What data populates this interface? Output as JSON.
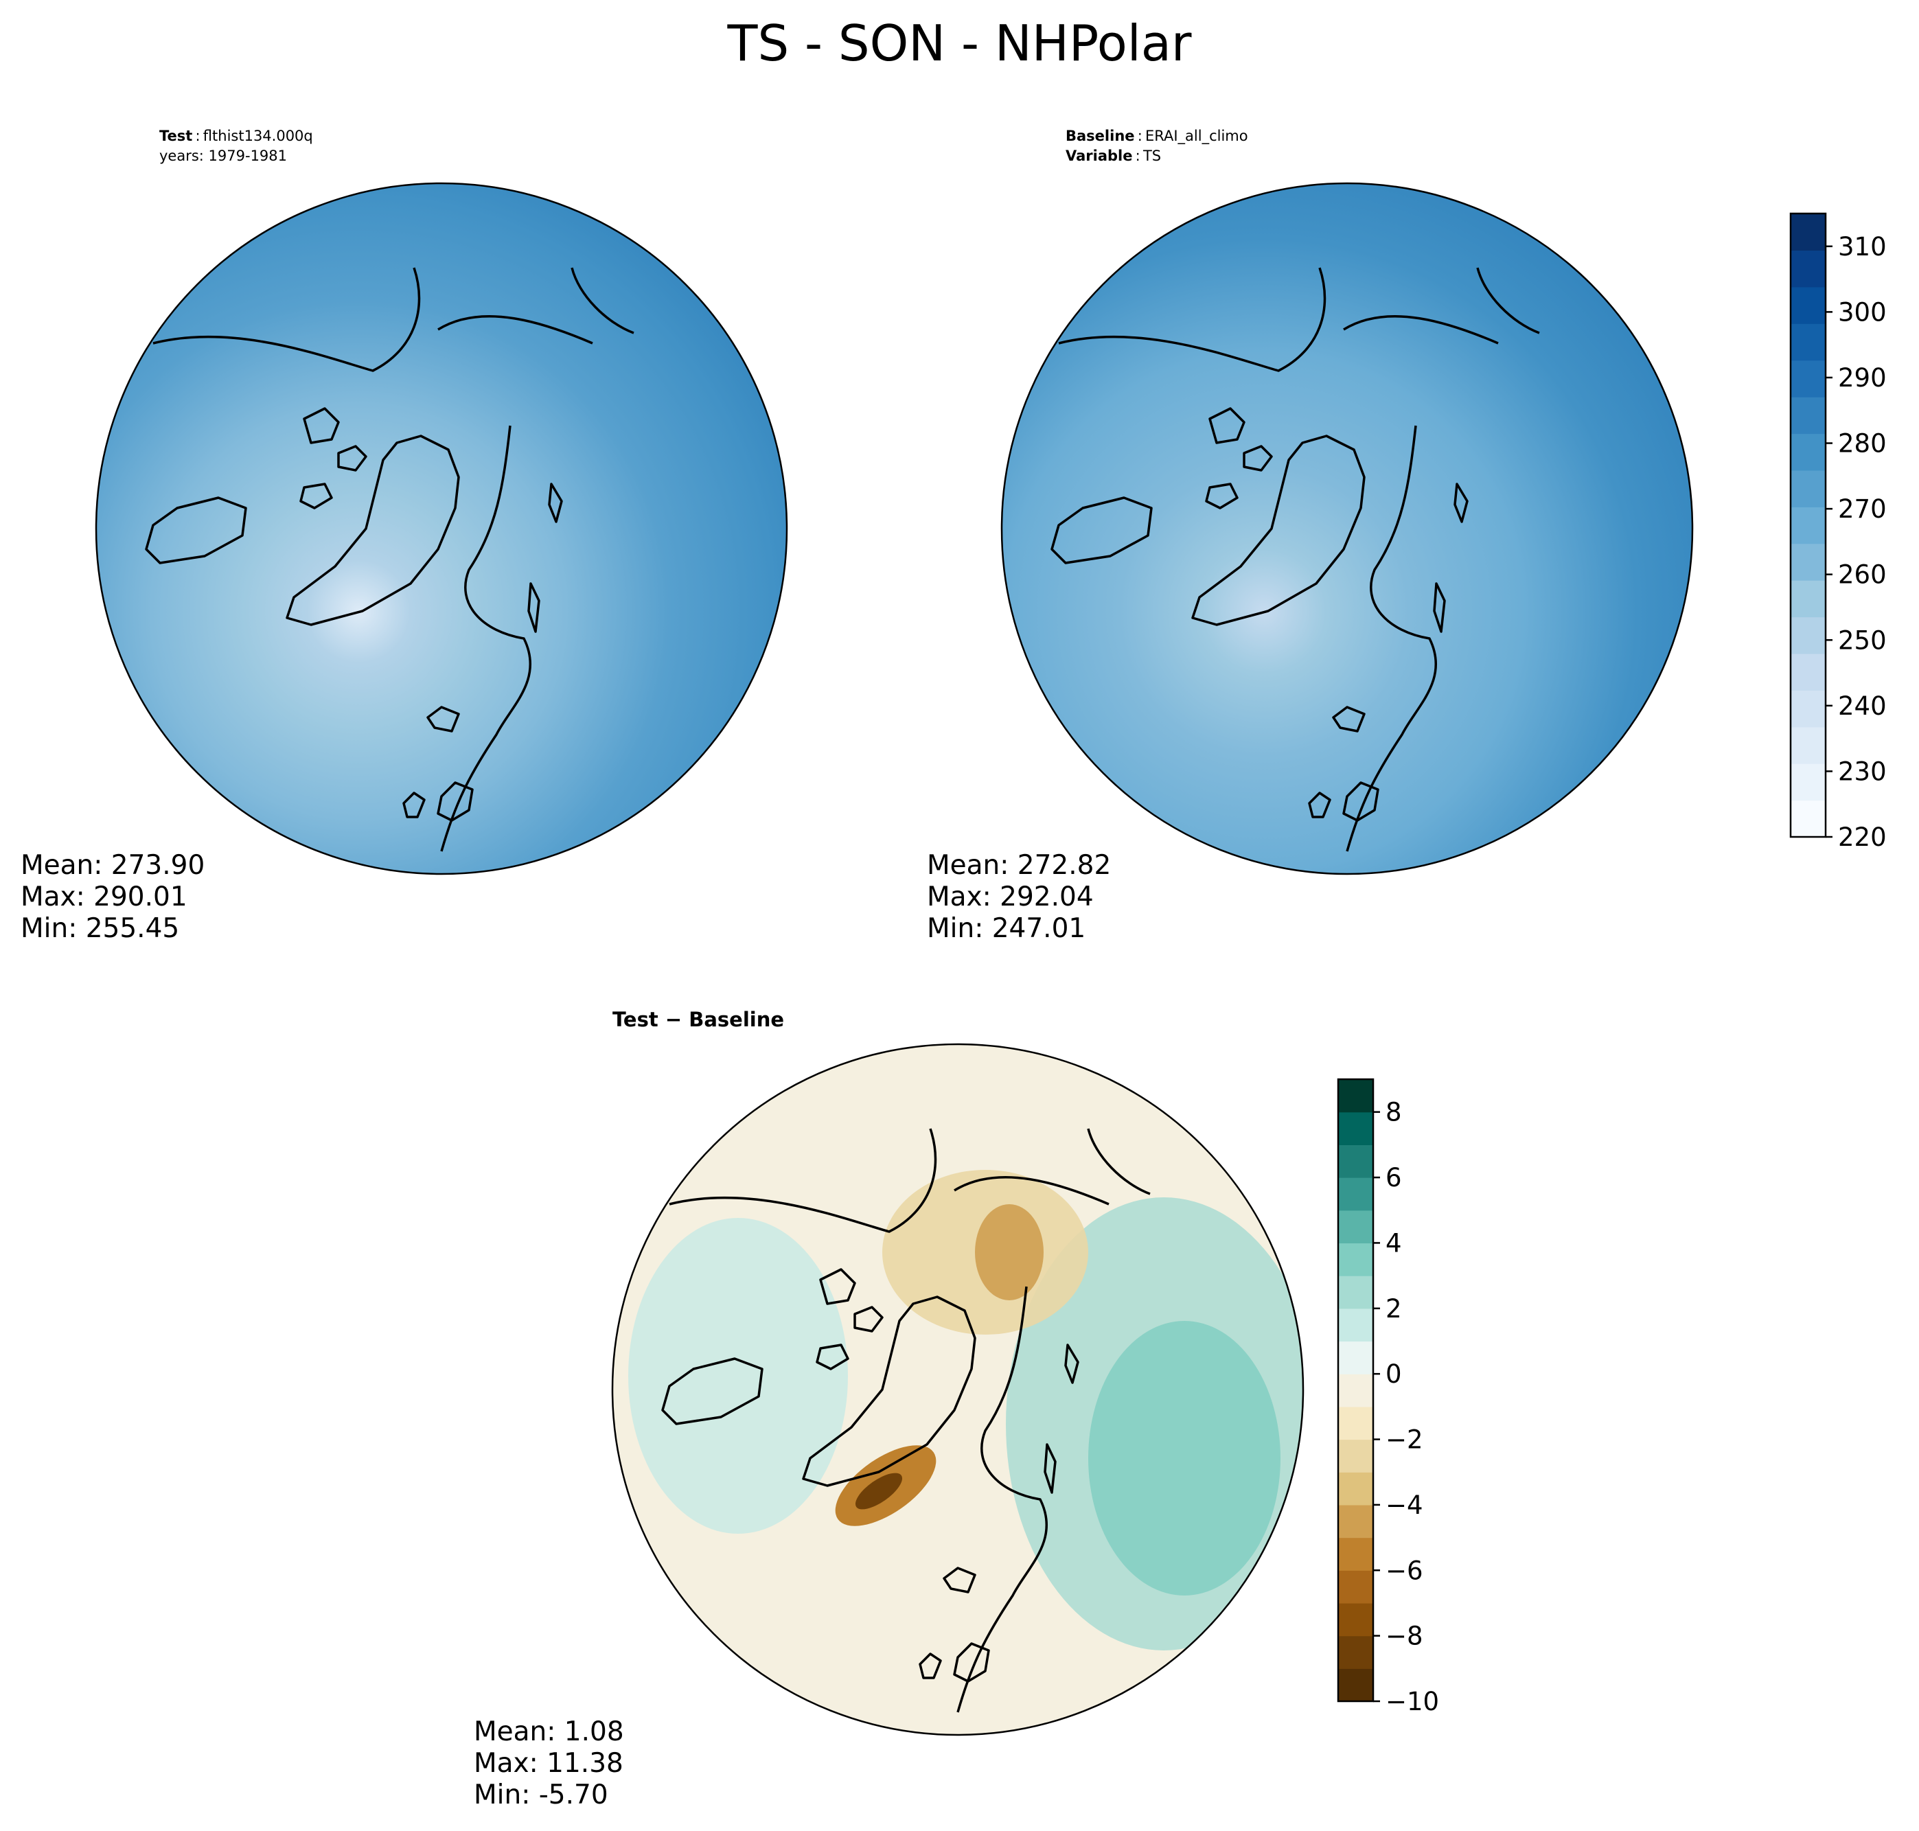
{
  "chart_data": {
    "title": "TS - SON - NHPolar",
    "panels": [
      {
        "type": "heatmap",
        "projection": "north-polar-stereographic",
        "label_key": "Test",
        "label_value": "flthist134.000q",
        "label2": "years: 1979-1981",
        "stats": {
          "mean": "Mean: 273.90",
          "max": "Max: 290.01",
          "min": "Min: 255.45"
        }
      },
      {
        "type": "heatmap",
        "projection": "north-polar-stereographic",
        "label_key": "Baseline",
        "label_value": "ERAI_all_climo",
        "label2_key": "Variable",
        "label2_value": "TS",
        "stats": {
          "mean": "Mean: 272.82",
          "max": "Max: 292.04",
          "min": "Min: 247.01"
        }
      },
      {
        "type": "heatmap",
        "projection": "north-polar-stereographic",
        "title": "Test − Baseline",
        "stats": {
          "mean": "Mean:  1.08",
          "max": "Max: 11.38",
          "min": "Min: -5.70"
        }
      }
    ],
    "colorbars": [
      {
        "name": "absolute",
        "range": [
          220,
          315
        ],
        "tick_labels": [
          "220",
          "230",
          "240",
          "250",
          "260",
          "270",
          "280",
          "290",
          "300",
          "310"
        ],
        "tick_values": [
          220,
          230,
          240,
          250,
          260,
          270,
          280,
          290,
          300,
          310
        ],
        "colors": [
          "#f7fbff",
          "#eaf3fb",
          "#deebf7",
          "#d2e3f3",
          "#c6dbef",
          "#b2d2e8",
          "#9ecae1",
          "#82badb",
          "#6baed6",
          "#57a0ce",
          "#4292c6",
          "#3282be",
          "#2171b5",
          "#1361a9",
          "#08519c",
          "#08418a",
          "#08306b"
        ]
      },
      {
        "name": "difference",
        "range": [
          -10,
          9
        ],
        "tick_labels": [
          "−10",
          "−8",
          "−6",
          "−4",
          "−2",
          "0",
          "2",
          "4",
          "6",
          "8"
        ],
        "tick_values": [
          -10,
          -8,
          -6,
          -4,
          -2,
          0,
          2,
          4,
          6,
          8
        ],
        "colors": [
          "#543005",
          "#6f4008",
          "#8c510a",
          "#a9671a",
          "#bf812d",
          "#cf9f51",
          "#dfc27d",
          "#ead7a5",
          "#f6e8c3",
          "#f5f0e0",
          "#eaf5f3",
          "#c7eae5",
          "#a6dbd2",
          "#80cdc1",
          "#5ab4a9",
          "#35978f",
          "#1e7f77",
          "#01665e",
          "#003c30"
        ]
      }
    ]
  }
}
